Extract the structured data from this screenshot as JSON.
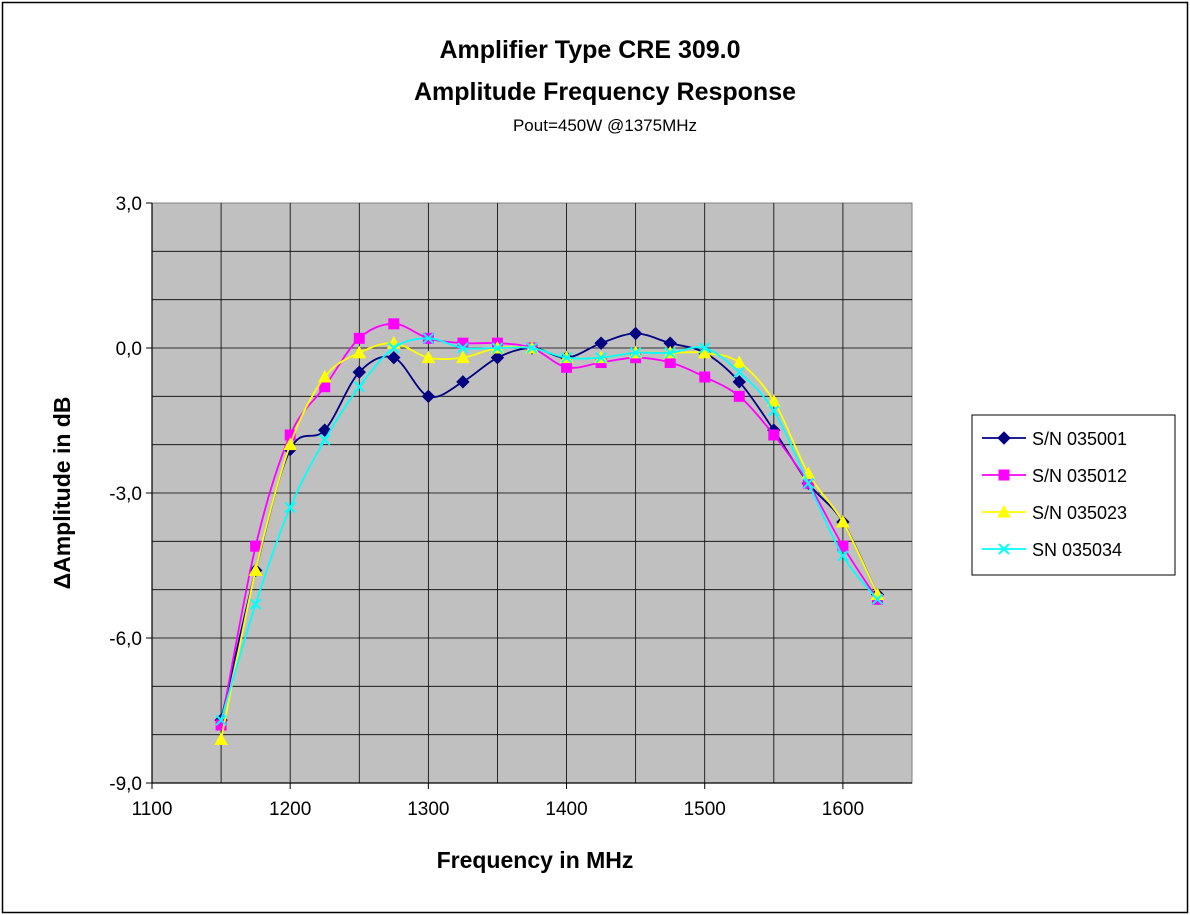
{
  "chart_data": {
    "type": "line",
    "title": "Amplifier Type CRE 309.0",
    "title_line2": "Amplitude Frequency Response",
    "subtitle": "Pout=450W @1375MHz",
    "xlabel": "Frequency in MHz",
    "ylabel": "ΔAmplitude in dB",
    "xlim": [
      1100,
      1650
    ],
    "ylim": [
      -9,
      3
    ],
    "x_ticks": [
      "1100",
      "1200",
      "1300",
      "1400",
      "1500",
      "1600"
    ],
    "y_ticks": [
      "3,0",
      "0,0",
      "-3,0",
      "-6,0",
      "-9,0"
    ],
    "grid": true,
    "plot_background": "#c0c0c0",
    "legend_position": "right",
    "x": [
      1150,
      1175,
      1200,
      1225,
      1250,
      1275,
      1300,
      1325,
      1350,
      1375,
      1400,
      1425,
      1450,
      1475,
      1500,
      1525,
      1550,
      1575,
      1600,
      1625
    ],
    "series": [
      {
        "name": "S/N 035001",
        "color": "#000080",
        "marker": "diamond",
        "values": [
          -7.7,
          -4.6,
          -2.1,
          -1.7,
          -0.5,
          -0.2,
          -1.0,
          -0.7,
          -0.2,
          0.0,
          -0.2,
          0.1,
          0.3,
          0.1,
          -0.1,
          -0.7,
          -1.7,
          -2.8,
          -3.6,
          -5.1
        ]
      },
      {
        "name": "S/N 035012",
        "color": "#ff00ff",
        "marker": "square",
        "values": [
          -7.8,
          -4.1,
          -1.8,
          -0.8,
          0.2,
          0.5,
          0.2,
          0.1,
          0.1,
          0.0,
          -0.4,
          -0.3,
          -0.2,
          -0.3,
          -0.6,
          -1.0,
          -1.8,
          -2.8,
          -4.1,
          -5.2
        ]
      },
      {
        "name": "S/N 035023",
        "color": "#ffff00",
        "marker": "triangle",
        "values": [
          -8.1,
          -4.6,
          -2.0,
          -0.6,
          -0.1,
          0.1,
          -0.2,
          -0.2,
          0.0,
          0.0,
          -0.2,
          -0.2,
          -0.1,
          -0.1,
          -0.1,
          -0.3,
          -1.1,
          -2.6,
          -3.6,
          -5.1
        ]
      },
      {
        "name": "SN 035034",
        "color": "#00ffff",
        "marker": "x",
        "values": [
          -7.7,
          -5.3,
          -3.3,
          -1.9,
          -0.8,
          0.0,
          0.2,
          0.0,
          0.0,
          0.0,
          -0.2,
          -0.2,
          -0.1,
          -0.1,
          0.0,
          -0.5,
          -1.3,
          -2.8,
          -4.3,
          -5.2
        ]
      }
    ]
  }
}
